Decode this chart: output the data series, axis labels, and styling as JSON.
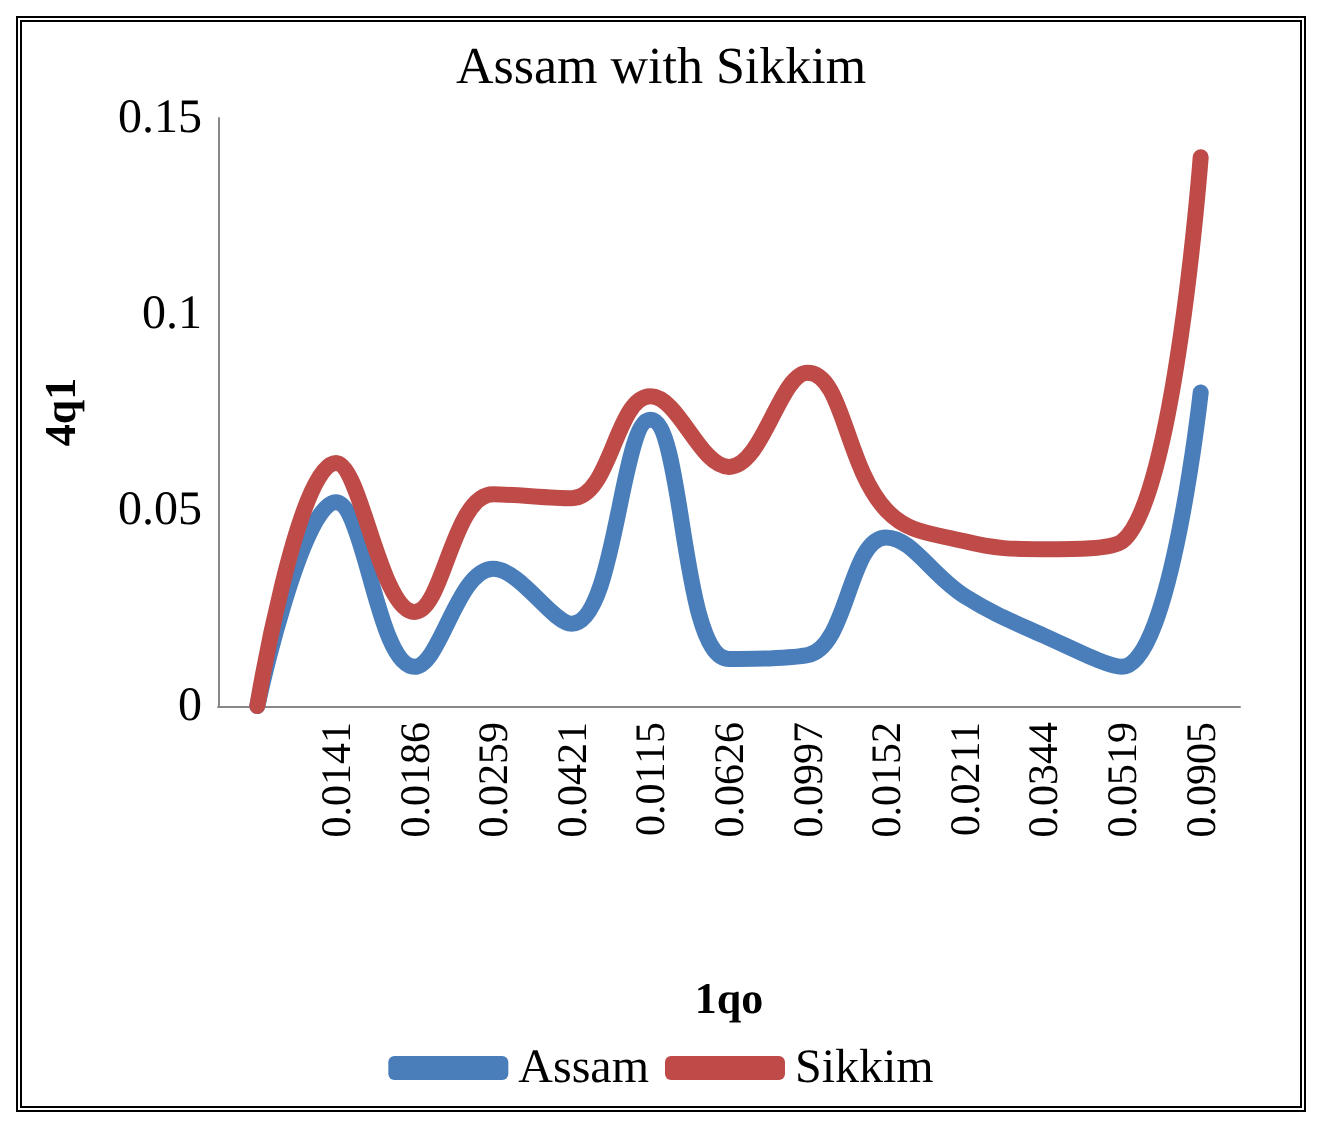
{
  "chart_data": {
    "type": "line",
    "title": "Assam with Sikkim",
    "xlabel": "1qo",
    "ylabel": "4q1",
    "categories": [
      null,
      "0.0141",
      "0.0186",
      "0.0259",
      "0.0421",
      "0.0115",
      "0.0626",
      "0.0997",
      "0.0152",
      "0.0211",
      "0.0344",
      "0.0519",
      "0.0905"
    ],
    "series": [
      {
        "name": "Assam",
        "color": "#4a7ebb",
        "values": [
          0,
          0.052,
          0.01,
          0.035,
          0.021,
          0.073,
          0.012,
          0.013,
          0.043,
          0.028,
          0.018,
          0.01,
          0.08
        ]
      },
      {
        "name": "Sikkim",
        "color": "#be4b48",
        "values": [
          0,
          0.062,
          0.024,
          0.054,
          0.053,
          0.079,
          0.061,
          0.085,
          0.05,
          0.042,
          0.04,
          0.042,
          0.14
        ]
      }
    ],
    "ylim": [
      0,
      0.15
    ],
    "yticks": [
      0,
      0.05,
      0.1,
      0.15
    ],
    "grid": false,
    "legend": "bottom",
    "marker": "none",
    "line_style": "solid"
  }
}
